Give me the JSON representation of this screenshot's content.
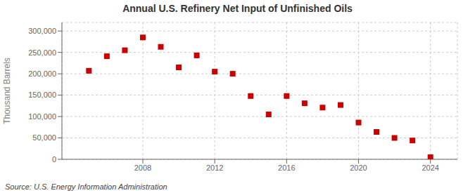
{
  "chart_data": {
    "type": "scatter",
    "title": "Annual U.S. Refinery Net Input of Unfinished Oils",
    "ylabel": "Thousand Barrels",
    "annotation": "Source: U.S. Energy Information Administration",
    "x": [
      2005,
      2006,
      2007,
      2008,
      2009,
      2010,
      2011,
      2012,
      2013,
      2014,
      2015,
      2016,
      2017,
      2018,
      2019,
      2020,
      2021,
      2022,
      2023,
      2024
    ],
    "values": [
      207000,
      241000,
      255000,
      285000,
      263000,
      215000,
      243000,
      205000,
      200000,
      148000,
      105000,
      148000,
      131000,
      121000,
      127000,
      86000,
      64000,
      50000,
      44000,
      5000
    ],
    "color": "#cc0000",
    "marker": "square",
    "grid": true,
    "ylim": [
      0,
      320000
    ],
    "yticks": [
      0,
      {
        "value": 50000,
        "label": "50,000"
      },
      {
        "value": 100000,
        "label": "100,000"
      },
      {
        "value": 150000,
        "label": "150,000"
      },
      {
        "value": 200000,
        "label": "200,000"
      },
      {
        "value": 250000,
        "label": "250,000"
      },
      {
        "value": 300000,
        "label": "300,000"
      }
    ],
    "xlim": [
      2003.5,
      2025.5
    ],
    "xticks": [
      2008,
      2012,
      2016,
      2020,
      2024
    ]
  }
}
